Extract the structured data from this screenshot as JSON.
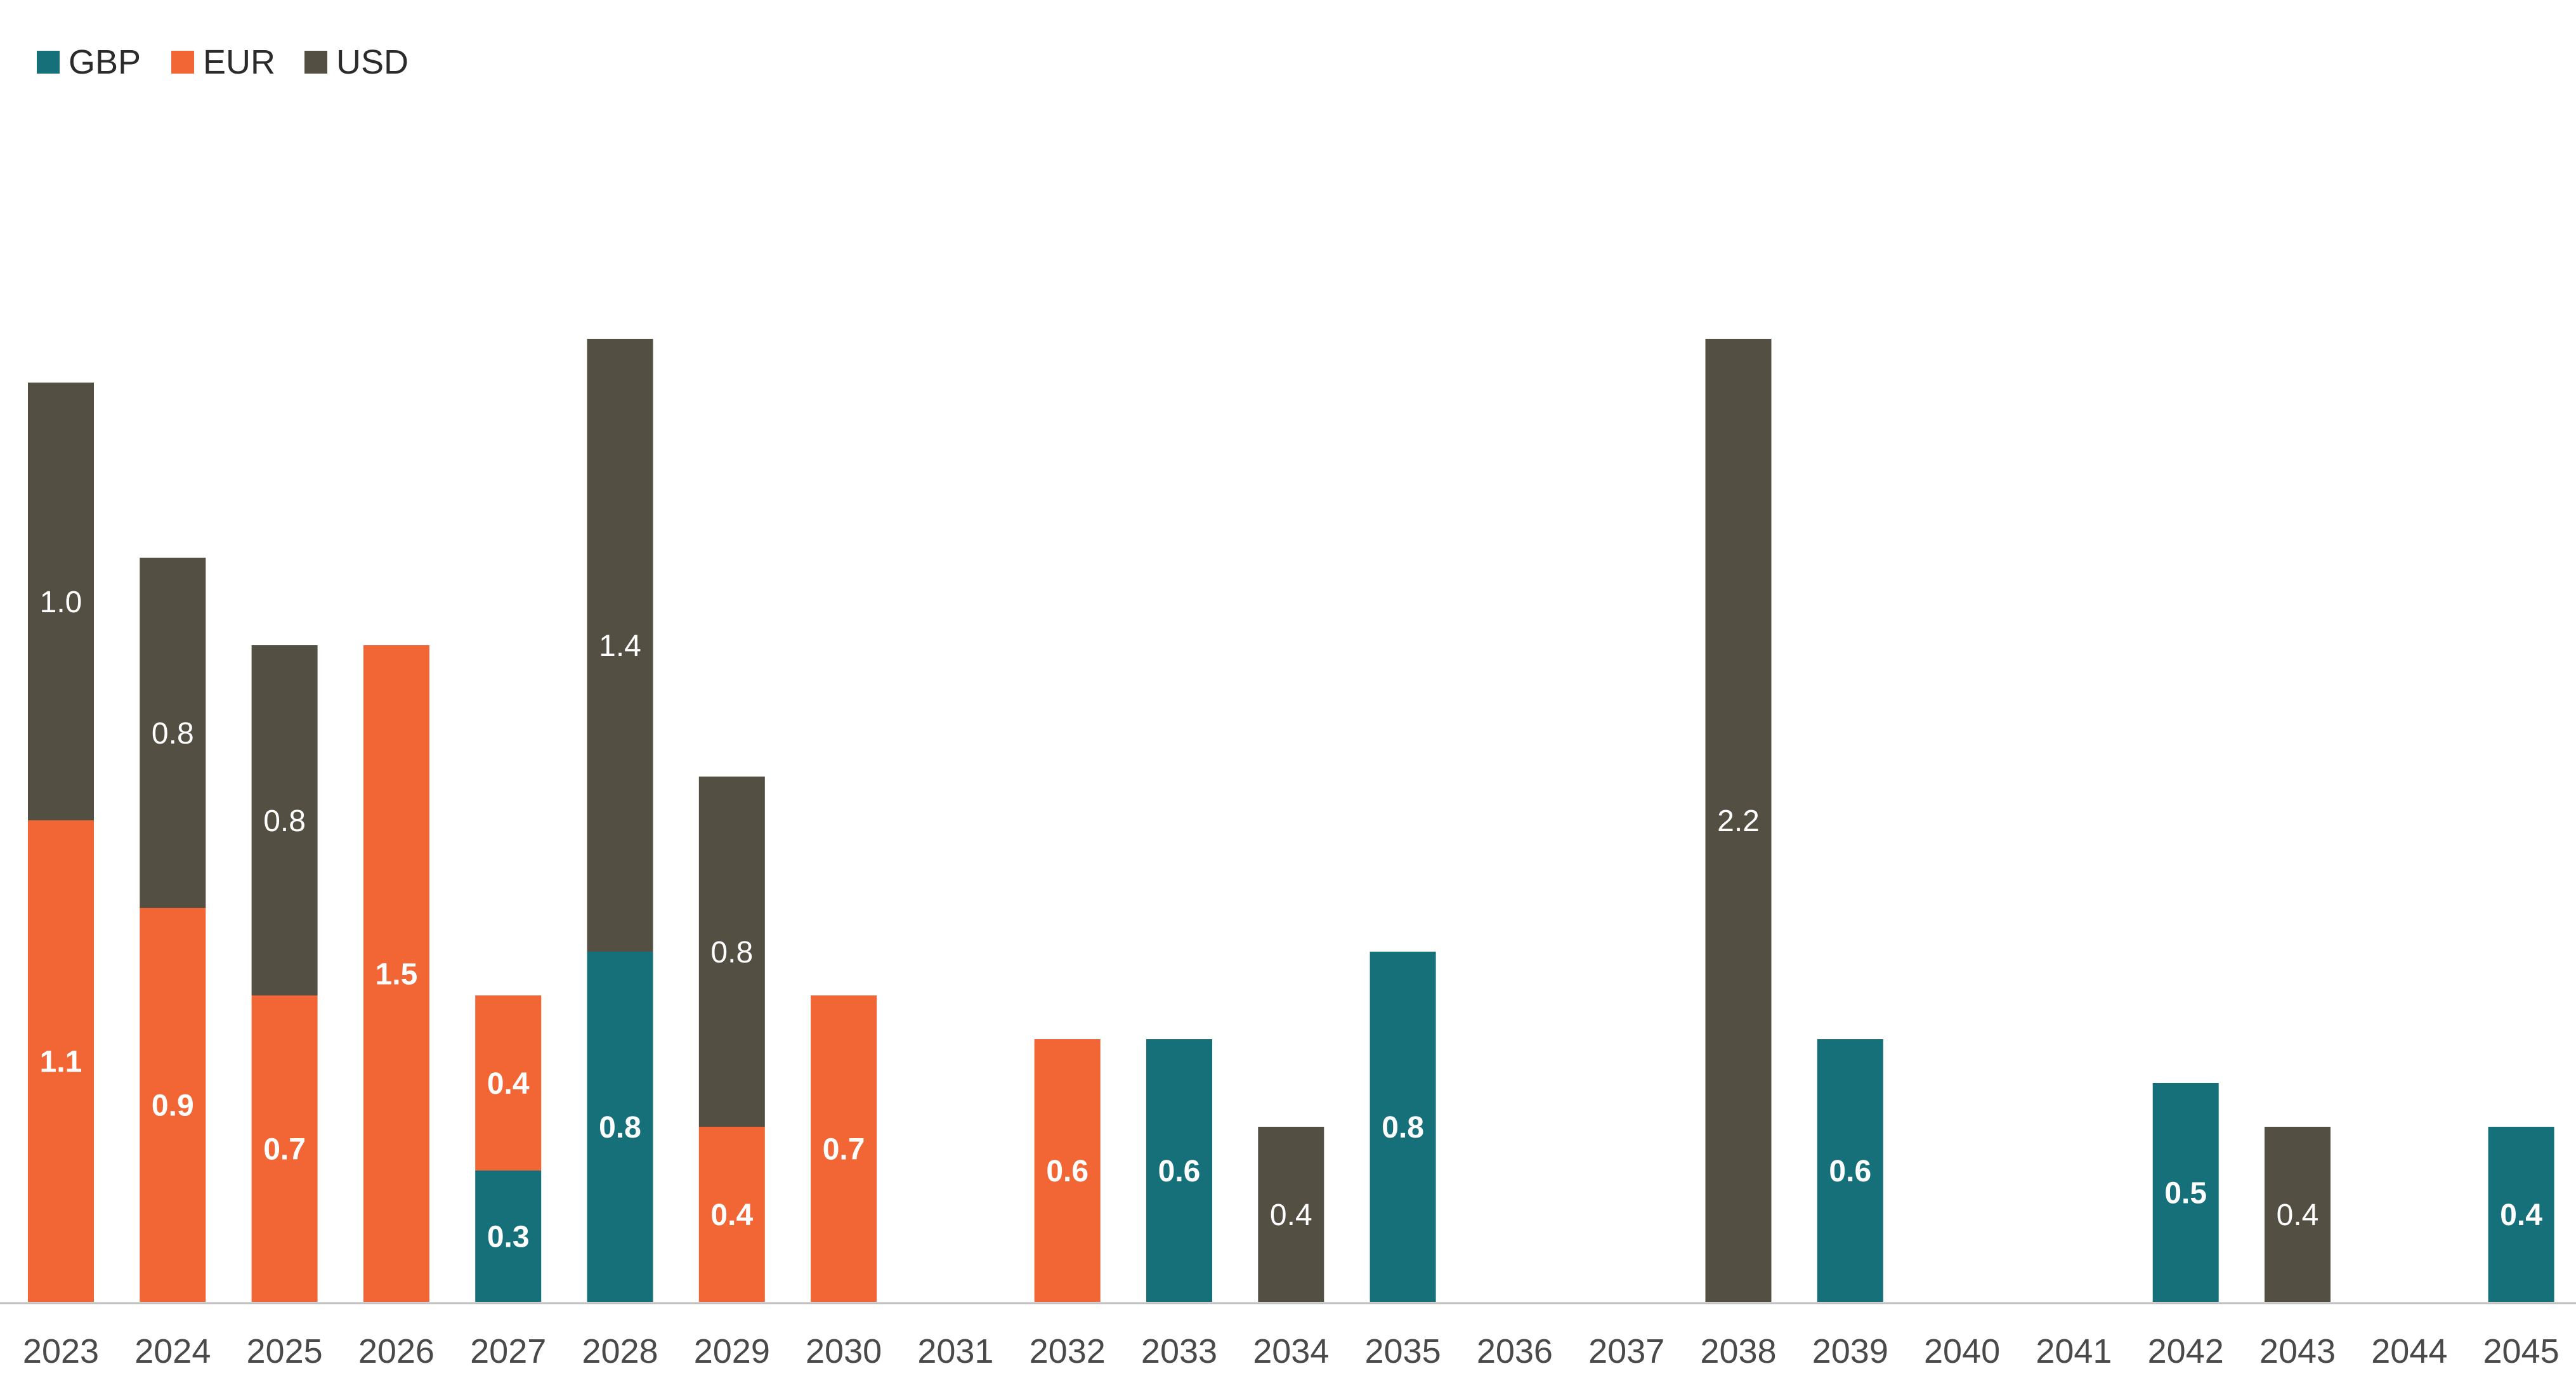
{
  "chart_data": {
    "type": "bar",
    "stacked": true,
    "legend_position": "top-left",
    "grid": false,
    "ylim": [
      0,
      2.6
    ],
    "categories": [
      "2023",
      "2024",
      "2025",
      "2026",
      "2027",
      "2028",
      "2029",
      "2030",
      "2031",
      "2032",
      "2033",
      "2034",
      "2035",
      "2036",
      "2037",
      "2038",
      "2039",
      "2040",
      "2041",
      "2042",
      "2043",
      "2044",
      "2045"
    ],
    "series": [
      {
        "name": "GBP",
        "color": "#15707a",
        "values": [
          0,
          0,
          0,
          0,
          0.3,
          0.8,
          0,
          0,
          0,
          0,
          0.6,
          0,
          0.8,
          0,
          0,
          0,
          0.6,
          0,
          0,
          0.5,
          0,
          0,
          0.4
        ],
        "labels": [
          "",
          "",
          "",
          "",
          "0.3",
          "0.8",
          "",
          "",
          "",
          "",
          "0.6",
          "",
          "0.8",
          "",
          "",
          "",
          "0.6",
          "",
          "",
          "0.5",
          "",
          "",
          "0.4"
        ]
      },
      {
        "name": "EUR",
        "color": "#f26535",
        "values": [
          1.1,
          0.9,
          0.7,
          1.5,
          0.4,
          0,
          0.4,
          0.7,
          0,
          0.6,
          0,
          0,
          0,
          0,
          0,
          0,
          0,
          0,
          0,
          0,
          0,
          0,
          0
        ],
        "labels": [
          "1.1",
          "0.9",
          "0.7",
          "1.5",
          "0.4",
          "",
          "0.4",
          "0.7",
          "",
          "0.6",
          "",
          "",
          "",
          "",
          "",
          "",
          "",
          "",
          "",
          "",
          "",
          "",
          ""
        ]
      },
      {
        "name": "USD",
        "color": "#544f43",
        "values": [
          1.0,
          0.8,
          0.8,
          0,
          0,
          1.4,
          0.8,
          0,
          0,
          0,
          0,
          0.4,
          0,
          0,
          0,
          2.2,
          0,
          0,
          0,
          0,
          0.4,
          0,
          0
        ],
        "labels": [
          "1.0",
          "0.8",
          "0.8",
          "",
          "",
          "1.4",
          "0.8",
          "",
          "",
          "",
          "",
          "0.4",
          "",
          "",
          "",
          "2.2",
          "",
          "",
          "",
          "",
          "0.4",
          "",
          ""
        ]
      }
    ]
  }
}
